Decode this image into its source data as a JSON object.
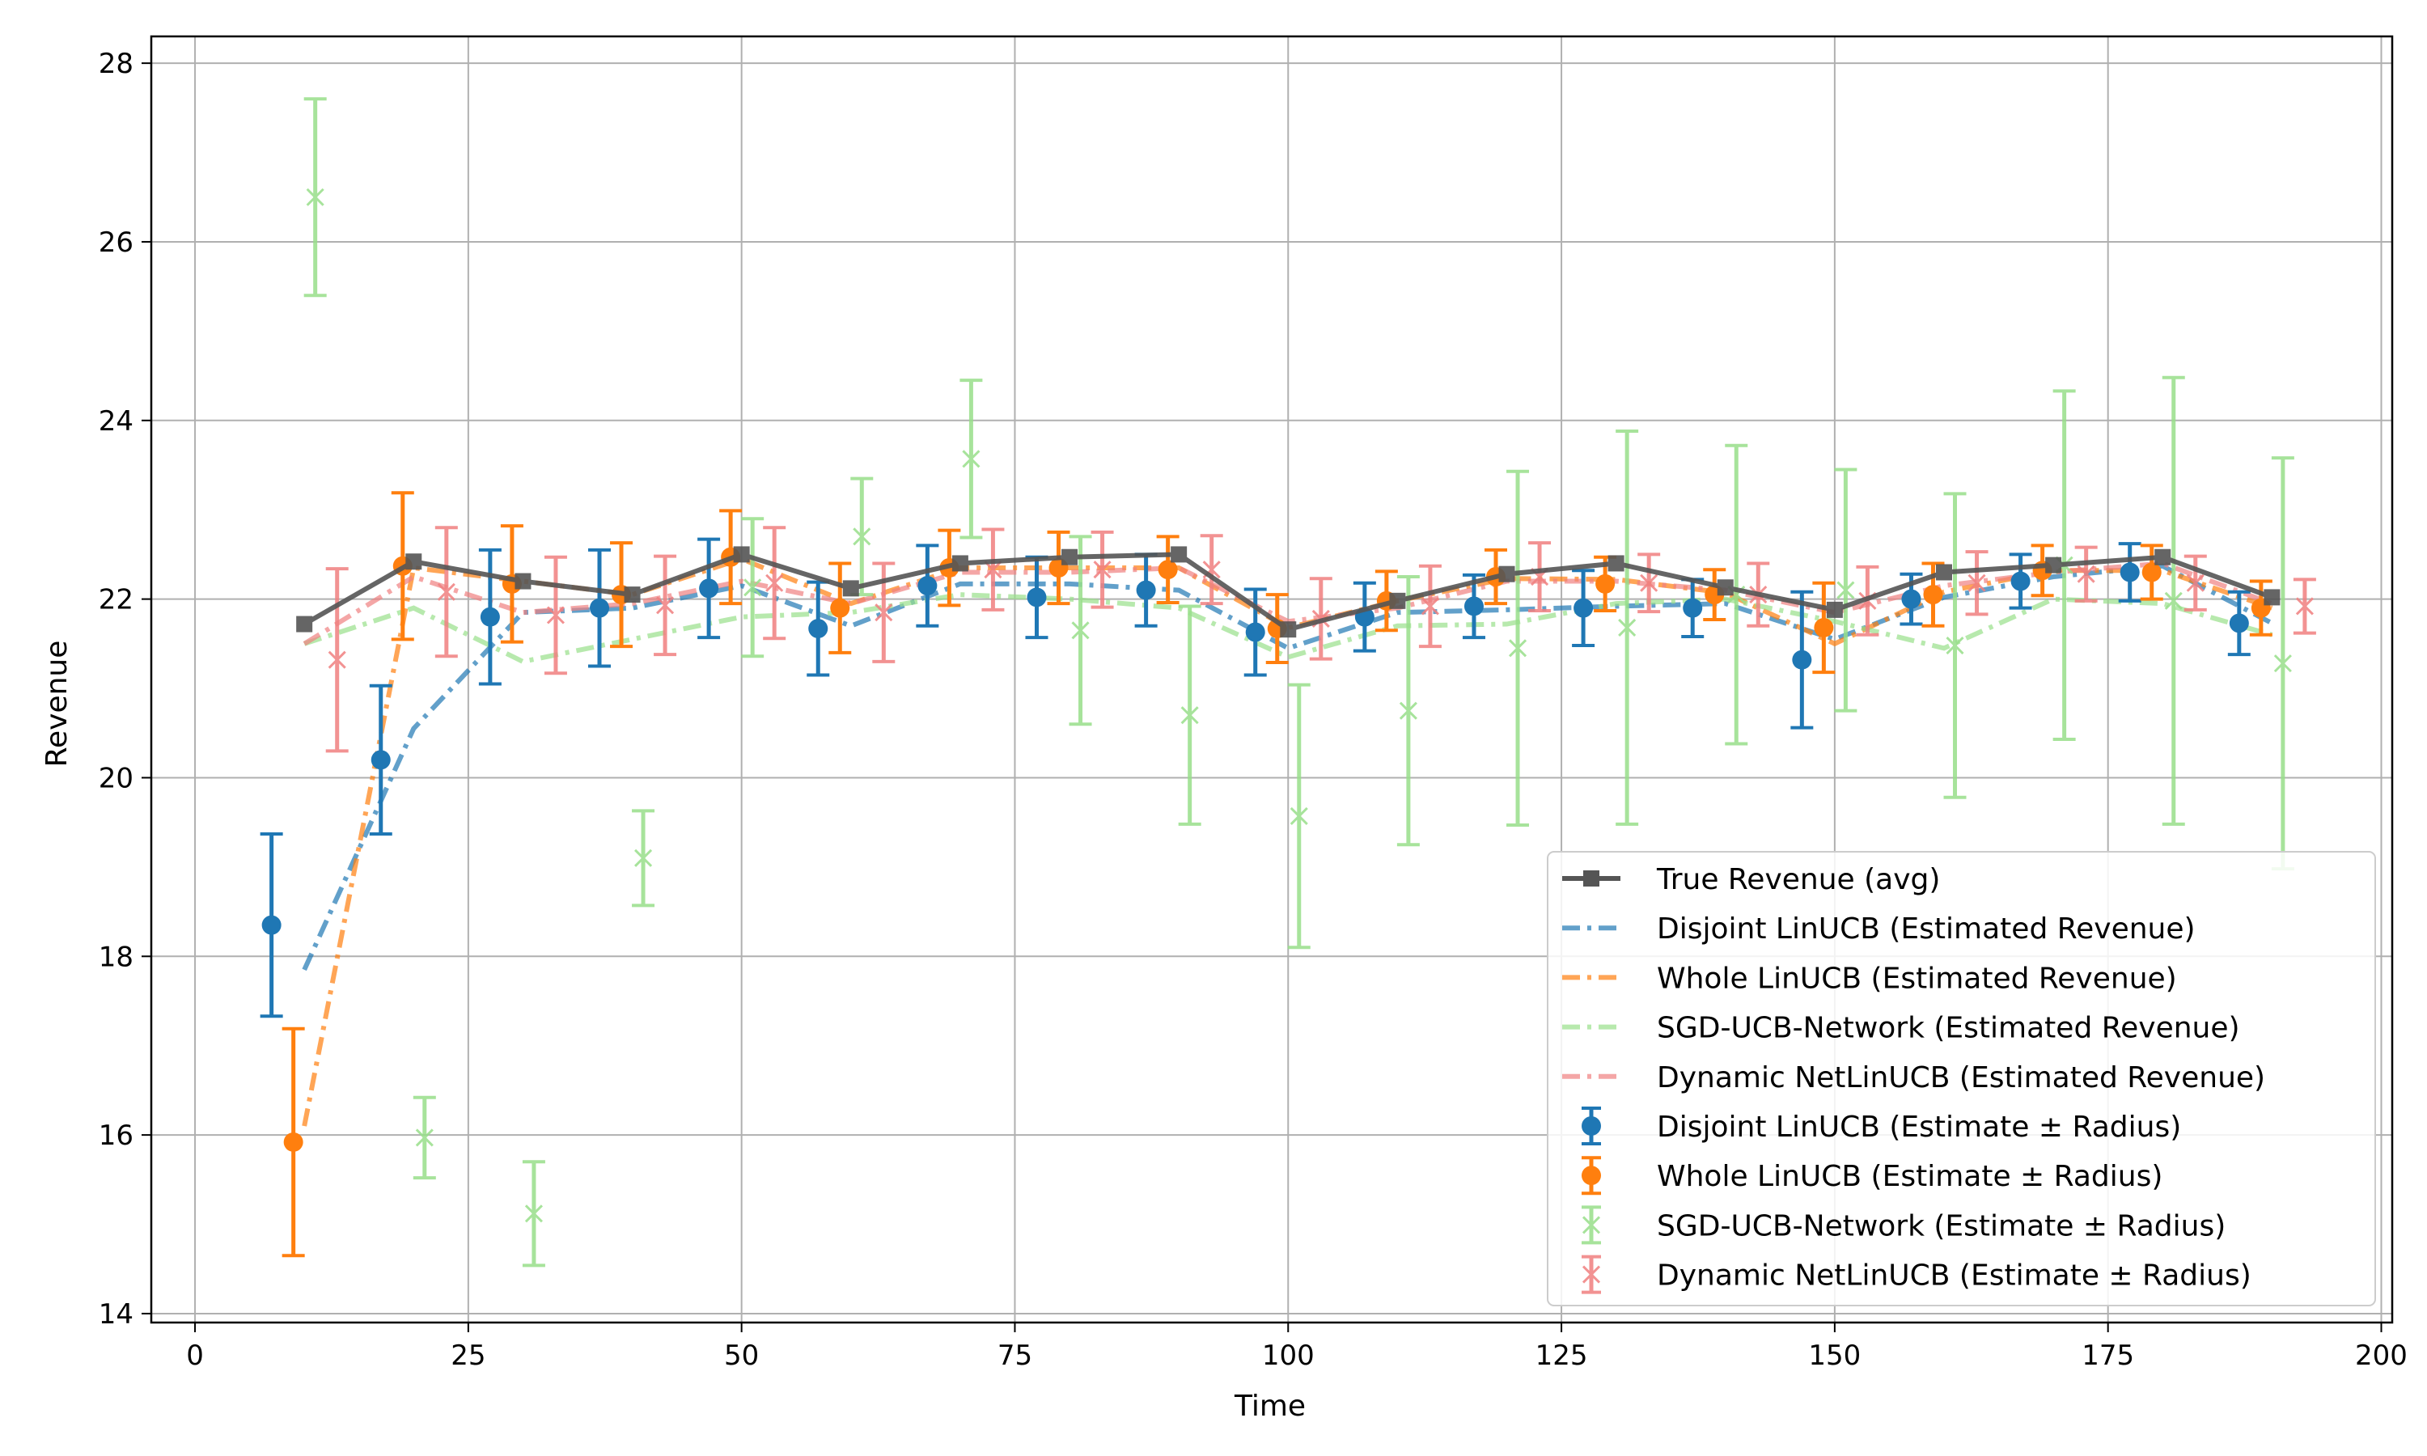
{
  "chart_data": {
    "type": "line",
    "xlabel": "Time",
    "ylabel": "Revenue",
    "xlim": [
      -4,
      201
    ],
    "ylim": [
      13.9,
      28.3
    ],
    "xticks": [
      0,
      25,
      50,
      75,
      100,
      125,
      150,
      175,
      200
    ],
    "yticks": [
      14,
      16,
      18,
      20,
      22,
      24,
      26,
      28
    ],
    "grid": true,
    "legend_position": "lower-right",
    "colors": {
      "true": "#555555",
      "disjoint": "#1f77b4",
      "whole": "#ff7f0e",
      "sgd": "#98df8a",
      "dynamic": "#f08080"
    },
    "true_revenue": {
      "name": "True Revenue (avg)",
      "x": [
        10,
        20,
        30,
        40,
        50,
        60,
        70,
        80,
        90,
        100,
        110,
        120,
        130,
        140,
        150,
        160,
        170,
        180,
        190
      ],
      "y": [
        21.72,
        22.42,
        22.2,
        22.05,
        22.5,
        22.12,
        22.4,
        22.47,
        22.5,
        21.66,
        21.98,
        22.28,
        22.4,
        22.13,
        21.88,
        22.3,
        22.38,
        22.47,
        22.02
      ]
    },
    "estimated_lines": [
      {
        "name": "Disjoint LinUCB (Estimated Revenue)",
        "key": "disjoint",
        "x": [
          10,
          20,
          30,
          40,
          50,
          60,
          70,
          80,
          90,
          100,
          110,
          120,
          130,
          140,
          150,
          160,
          170,
          180,
          190
        ],
        "y": [
          17.85,
          20.55,
          21.85,
          21.9,
          22.15,
          21.7,
          22.17,
          22.17,
          22.1,
          21.45,
          21.85,
          21.88,
          21.92,
          21.95,
          21.55,
          22.02,
          22.25,
          22.37,
          21.73
        ]
      },
      {
        "name": "Whole LinUCB (Estimated Revenue)",
        "key": "whole",
        "x": [
          10,
          20,
          30,
          40,
          50,
          60,
          70,
          80,
          90,
          100,
          110,
          120,
          130,
          140,
          150,
          160,
          170,
          180,
          190
        ],
        "y": [
          16.1,
          22.35,
          22.2,
          22.05,
          22.45,
          21.95,
          22.35,
          22.35,
          22.35,
          21.68,
          21.98,
          22.23,
          22.22,
          22.07,
          21.5,
          22.08,
          22.32,
          22.32,
          21.9
        ]
      },
      {
        "name": "SGD-UCB-Network (Estimated Revenue)",
        "key": "sgd",
        "x": [
          10,
          20,
          30,
          40,
          50,
          60,
          70,
          80,
          90,
          100,
          110,
          120,
          130,
          140,
          150,
          160,
          170,
          180,
          190
        ],
        "y": [
          21.5,
          21.9,
          21.3,
          21.55,
          21.8,
          21.85,
          22.05,
          22.0,
          21.9,
          21.35,
          21.7,
          21.72,
          21.95,
          22.0,
          21.75,
          21.45,
          22.0,
          21.95,
          21.6
        ]
      },
      {
        "name": "Dynamic NetLinUCB (Estimated Revenue)",
        "key": "dynamic",
        "x": [
          10,
          20,
          30,
          40,
          50,
          60,
          70,
          80,
          90,
          100,
          110,
          120,
          130,
          140,
          150,
          160,
          170,
          180,
          190
        ],
        "y": [
          21.5,
          22.25,
          21.85,
          21.95,
          22.2,
          21.95,
          22.3,
          22.3,
          22.35,
          21.75,
          21.9,
          22.2,
          22.2,
          22.1,
          21.85,
          22.15,
          22.3,
          22.4,
          21.95
        ]
      }
    ],
    "estimates": [
      {
        "name": "Disjoint LinUCB (Estimate ± Radius)",
        "key": "disjoint",
        "marker": "circle",
        "x": [
          7,
          17,
          27,
          37,
          47,
          57,
          67,
          77,
          87,
          97,
          107,
          117,
          127,
          137,
          147,
          157,
          167,
          177,
          187
        ],
        "y": [
          18.35,
          20.2,
          21.8,
          21.9,
          22.12,
          21.67,
          22.15,
          22.02,
          22.1,
          21.63,
          21.8,
          21.92,
          21.9,
          21.9,
          21.32,
          22.0,
          22.2,
          22.3,
          21.73
        ],
        "err": [
          1.02,
          0.83,
          0.75,
          0.65,
          0.55,
          0.52,
          0.45,
          0.45,
          0.4,
          0.48,
          0.38,
          0.35,
          0.42,
          0.32,
          0.76,
          0.28,
          0.3,
          0.32,
          0.35
        ]
      },
      {
        "name": "Whole LinUCB (Estimate ± Radius)",
        "key": "whole",
        "marker": "circle",
        "x": [
          9,
          19,
          29,
          39,
          49,
          59,
          69,
          79,
          89,
          99,
          109,
          119,
          129,
          139,
          149,
          159,
          169,
          179,
          189
        ],
        "y": [
          15.92,
          22.37,
          22.17,
          22.05,
          22.47,
          21.9,
          22.35,
          22.35,
          22.33,
          21.67,
          21.98,
          22.25,
          22.17,
          22.05,
          21.68,
          22.05,
          22.32,
          22.3,
          21.9
        ],
        "err": [
          1.27,
          0.82,
          0.65,
          0.58,
          0.52,
          0.5,
          0.42,
          0.4,
          0.37,
          0.38,
          0.33,
          0.3,
          0.3,
          0.28,
          0.5,
          0.35,
          0.28,
          0.3,
          0.3
        ]
      },
      {
        "name": "SGD-UCB-Network (Estimate ± Radius)",
        "key": "sgd",
        "marker": "x",
        "x": [
          11,
          21,
          31,
          41,
          51,
          61,
          71,
          81,
          91,
          101,
          111,
          121,
          131,
          141,
          151,
          161,
          171,
          181,
          191
        ],
        "y": [
          26.5,
          15.97,
          15.12,
          19.1,
          22.13,
          22.7,
          23.57,
          21.65,
          20.7,
          19.57,
          20.75,
          21.45,
          21.68,
          22.05,
          22.1,
          21.48,
          22.38,
          21.98,
          21.28
        ],
        "err": [
          1.1,
          0.45,
          0.58,
          0.53,
          0.77,
          0.65,
          0.88,
          1.05,
          1.22,
          1.47,
          1.5,
          1.98,
          2.2,
          1.67,
          1.35,
          1.7,
          1.95,
          2.5,
          2.3
        ]
      },
      {
        "name": "Dynamic NetLinUCB (Estimate ± Radius)",
        "key": "dynamic",
        "marker": "x",
        "x": [
          13,
          23,
          33,
          43,
          53,
          63,
          73,
          83,
          93,
          103,
          113,
          123,
          133,
          143,
          153,
          163,
          173,
          183,
          193
        ],
        "y": [
          21.32,
          22.08,
          21.82,
          21.93,
          22.18,
          21.85,
          22.33,
          22.33,
          22.33,
          21.78,
          21.92,
          22.25,
          22.18,
          22.05,
          21.98,
          22.18,
          22.28,
          22.18,
          21.92
        ],
        "err": [
          1.02,
          0.72,
          0.65,
          0.55,
          0.62,
          0.55,
          0.45,
          0.42,
          0.38,
          0.45,
          0.45,
          0.38,
          0.32,
          0.35,
          0.38,
          0.35,
          0.3,
          0.3,
          0.3
        ]
      }
    ],
    "legend": [
      "True Revenue (avg)",
      "Disjoint LinUCB (Estimated Revenue)",
      "Whole LinUCB (Estimated Revenue)",
      "SGD-UCB-Network (Estimated Revenue)",
      "Dynamic NetLinUCB (Estimated Revenue)",
      "Disjoint LinUCB (Estimate ± Radius)",
      "Whole LinUCB (Estimate ± Radius)",
      "SGD-UCB-Network (Estimate ± Radius)",
      "Dynamic NetLinUCB (Estimate ± Radius)"
    ]
  }
}
